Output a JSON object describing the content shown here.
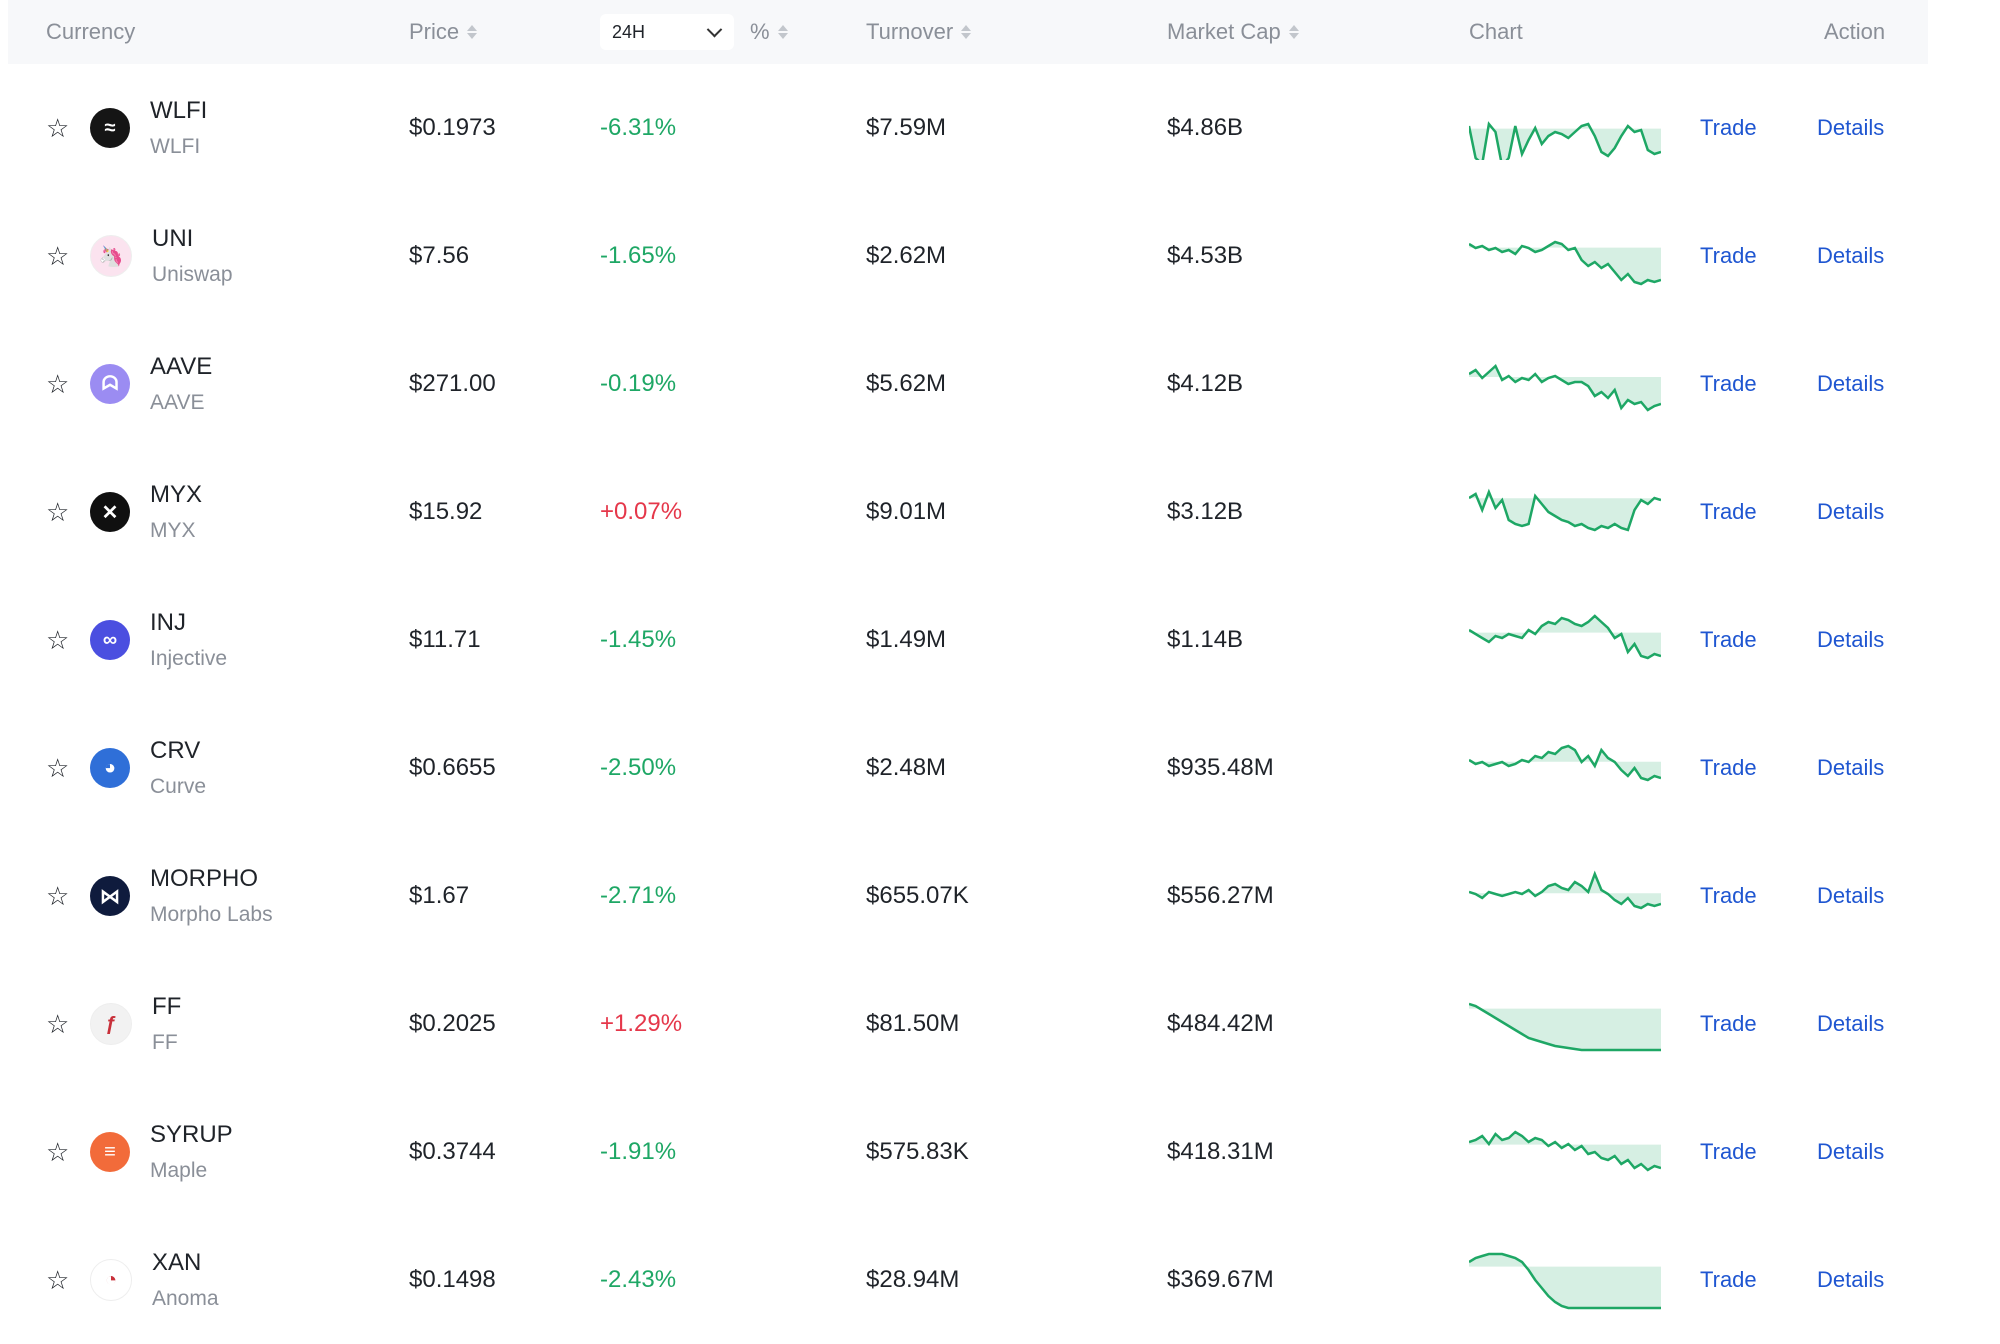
{
  "header": {
    "currency": "Currency",
    "price": "Price",
    "period": "24H",
    "percent": "%",
    "turnover": "Turnover",
    "market_cap": "Market Cap",
    "chart": "Chart",
    "action": "Action"
  },
  "colors": {
    "up": "#1ea765",
    "down": "#e5374a",
    "link": "#1f56d1"
  },
  "rows": [
    {
      "symbol": "WLFI",
      "name": "WLFI",
      "price": "$0.1973",
      "change": "-6.31%",
      "direction": "neg",
      "turnover": "$7.59M",
      "market_cap": "$4.86B",
      "trade": "Trade",
      "details": "Details",
      "icon": "wlfi-eagle-icon",
      "icon_bg": "#151515",
      "icon_glyph": "≈"
    },
    {
      "symbol": "UNI",
      "name": "Uniswap",
      "price": "$7.56",
      "change": "-1.65%",
      "direction": "neg",
      "turnover": "$2.62M",
      "market_cap": "$4.53B",
      "trade": "Trade",
      "details": "Details",
      "icon": "uniswap-unicorn-icon",
      "icon_bg": "#fbe3ef",
      "icon_glyph": "🦄"
    },
    {
      "symbol": "AAVE",
      "name": "AAVE",
      "price": "$271.00",
      "change": "-0.19%",
      "direction": "neg",
      "turnover": "$5.62M",
      "market_cap": "$4.12B",
      "trade": "Trade",
      "details": "Details",
      "icon": "aave-ghost-icon",
      "icon_bg": "#9b8cf2",
      "icon_glyph": "ᗣ"
    },
    {
      "symbol": "MYX",
      "name": "MYX",
      "price": "$15.92",
      "change": "+0.07%",
      "direction": "pos",
      "turnover": "$9.01M",
      "market_cap": "$3.12B",
      "trade": "Trade",
      "details": "Details",
      "icon": "myx-cross-icon",
      "icon_bg": "#101010",
      "icon_glyph": "✕"
    },
    {
      "symbol": "INJ",
      "name": "Injective",
      "price": "$11.71",
      "change": "-1.45%",
      "direction": "neg",
      "turnover": "$1.49M",
      "market_cap": "$1.14B",
      "trade": "Trade",
      "details": "Details",
      "icon": "injective-loop-icon",
      "icon_bg": "#4b4fe0",
      "icon_glyph": "∞"
    },
    {
      "symbol": "CRV",
      "name": "Curve",
      "price": "$0.6655",
      "change": "-2.50%",
      "direction": "neg",
      "turnover": "$2.48M",
      "market_cap": "$935.48M",
      "trade": "Trade",
      "details": "Details",
      "icon": "curve-rainbow-icon",
      "icon_bg": "#2f6fd8",
      "icon_glyph": "◕"
    },
    {
      "symbol": "MORPHO",
      "name": "Morpho Labs",
      "price": "$1.67",
      "change": "-2.71%",
      "direction": "neg",
      "turnover": "$655.07K",
      "market_cap": "$556.27M",
      "trade": "Trade",
      "details": "Details",
      "icon": "morpho-butterfly-icon",
      "icon_bg": "#0f1b3d",
      "icon_glyph": "⋈"
    },
    {
      "symbol": "FF",
      "name": "FF",
      "price": "$0.2025",
      "change": "+1.29%",
      "direction": "pos",
      "turnover": "$81.50M",
      "market_cap": "$484.42M",
      "trade": "Trade",
      "details": "Details",
      "icon": "ff-script-f-icon",
      "icon_bg": "#f2f2f2",
      "icon_glyph": "ƒ"
    },
    {
      "symbol": "SYRUP",
      "name": "Maple",
      "price": "$0.3744",
      "change": "-1.91%",
      "direction": "neg",
      "turnover": "$575.83K",
      "market_cap": "$418.31M",
      "trade": "Trade",
      "details": "Details",
      "icon": "maple-stripes-icon",
      "icon_bg": "#f26b3a",
      "icon_glyph": "≡"
    },
    {
      "symbol": "XAN",
      "name": "Anoma",
      "price": "$0.1498",
      "change": "-2.43%",
      "direction": "neg",
      "turnover": "$28.94M",
      "market_cap": "$369.67M",
      "trade": "Trade",
      "details": "Details",
      "icon": "anoma-ring-icon",
      "icon_bg": "#ffffff",
      "icon_glyph": "◔"
    }
  ]
}
